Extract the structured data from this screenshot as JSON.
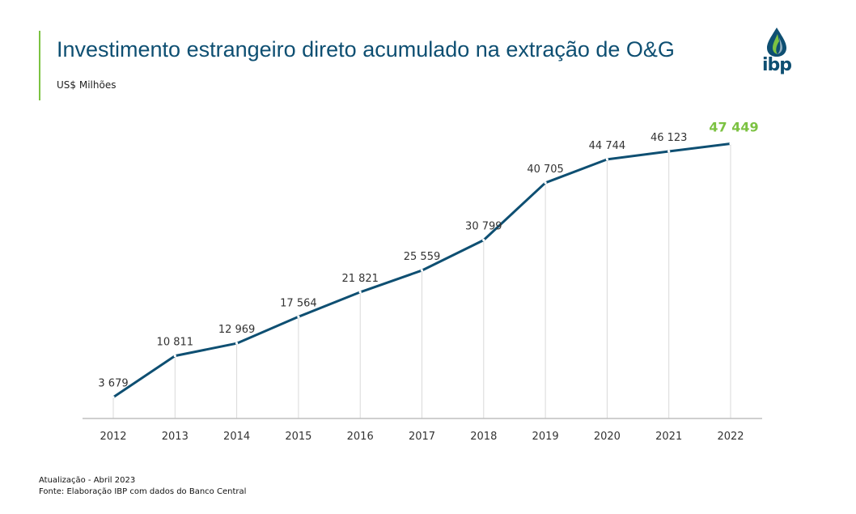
{
  "header": {
    "title": "Investimento estrangeiro direto acumulado na extração de O&G",
    "subtitle": "US$ Milhões",
    "logo_text": "ibp"
  },
  "footer": {
    "update": "Atualização - Abril 2023",
    "source": "Fonte: Elaboração IBP com dados do Banco Central"
  },
  "colors": {
    "line": "#0e4f72",
    "highlight_label": "#7cc242",
    "accent": "#7cc242",
    "gridline": "#d9d9d9",
    "axis": "#bfbfbf",
    "label": "#333333"
  },
  "chart_data": {
    "type": "line",
    "categories": [
      "2012",
      "2013",
      "2014",
      "2015",
      "2016",
      "2017",
      "2018",
      "2019",
      "2020",
      "2021",
      "2022"
    ],
    "values": [
      3679,
      10811,
      12969,
      17564,
      21821,
      25559,
      30799,
      40705,
      44744,
      46123,
      47449
    ],
    "data_labels": [
      "3 679",
      "10 811",
      "12 969",
      "17 564",
      "21 821",
      "25 559",
      "30 799",
      "40 705",
      "44 744",
      "46 123",
      "47 449"
    ],
    "title": "Investimento estrangeiro direto acumulado na extração de O&G",
    "ylabel": "US$ Milhões",
    "ylim": [
      0,
      52000
    ],
    "grid": "vertical",
    "legend": "none",
    "highlighted_point": "2022"
  }
}
